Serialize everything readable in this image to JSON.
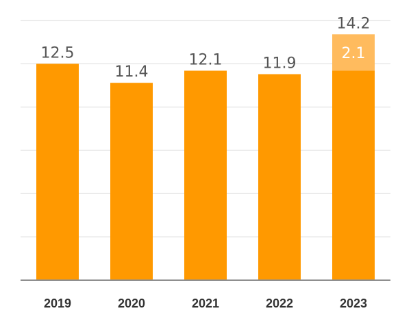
{
  "chart_data": {
    "type": "bar",
    "stacked": true,
    "categories": [
      "2019",
      "2020",
      "2021",
      "2022",
      "2023"
    ],
    "series": [
      {
        "values": [
          12.5,
          11.4,
          12.1,
          11.9,
          12.1
        ]
      },
      {
        "values": [
          0,
          0,
          0,
          0,
          2.1
        ]
      }
    ],
    "totals": [
      12.5,
      11.4,
      12.1,
      11.9,
      14.2
    ],
    "total_labels": [
      "12.5",
      "11.4",
      "12.1",
      "11.9",
      "14.2"
    ],
    "segment_labels": [
      "",
      "",
      "",
      "",
      "2.1"
    ],
    "ylim": [
      0,
      15
    ],
    "gridlines": [
      0,
      2.5,
      5,
      7.5,
      10,
      12.5,
      15
    ],
    "grid": true,
    "colors": {
      "primary": "#FF9900",
      "secondary": "#FFBB5E",
      "grid": "#E6E6E6",
      "axis": "#8F8F8F",
      "text": "#555555"
    }
  }
}
